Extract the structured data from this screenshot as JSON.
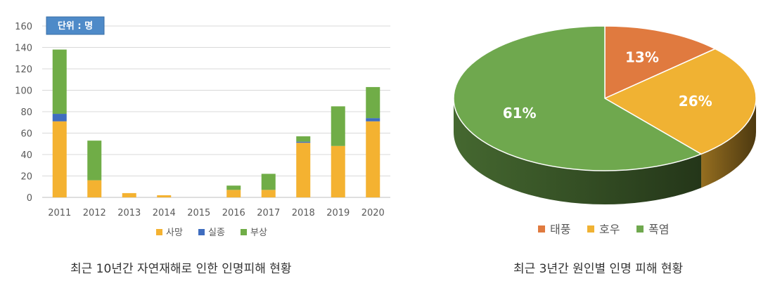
{
  "chart_data": [
    {
      "type": "bar",
      "stacked": true,
      "unit_badge": "단위 : 명",
      "categories": [
        "2011",
        "2012",
        "2013",
        "2014",
        "2015",
        "2016",
        "2017",
        "2018",
        "2019",
        "2020"
      ],
      "series": [
        {
          "name": "사망",
          "color": "#F4B231",
          "values": [
            71,
            16,
            4,
            2,
            0,
            7,
            7,
            51,
            48,
            71
          ]
        },
        {
          "name": "실종",
          "color": "#3F6DBF",
          "values": [
            7,
            0,
            0,
            0,
            0,
            0,
            0,
            1,
            0,
            3
          ]
        },
        {
          "name": "부상",
          "color": "#70AD47",
          "values": [
            60,
            37,
            0,
            0,
            0,
            4,
            15,
            5,
            37,
            29
          ]
        }
      ],
      "ylim": [
        0,
        160
      ],
      "yticks": [
        0,
        20,
        40,
        60,
        80,
        100,
        120,
        140,
        160
      ],
      "grid": true,
      "legend": "bottom",
      "caption": "최근 10년간 자연재해로 인한 인명피해 현황"
    },
    {
      "type": "pie",
      "style": "3d",
      "slices": [
        {
          "name": "태풍",
          "value": 13,
          "label": "13%",
          "color": "#E07A3F"
        },
        {
          "name": "호우",
          "value": 26,
          "label": "26%",
          "color": "#F0B233"
        },
        {
          "name": "폭염",
          "value": 61,
          "label": "61%",
          "color": "#6FA84E"
        }
      ],
      "legend": "bottom",
      "caption": "최근 3년간 원인별 인명 피해 현황"
    }
  ]
}
